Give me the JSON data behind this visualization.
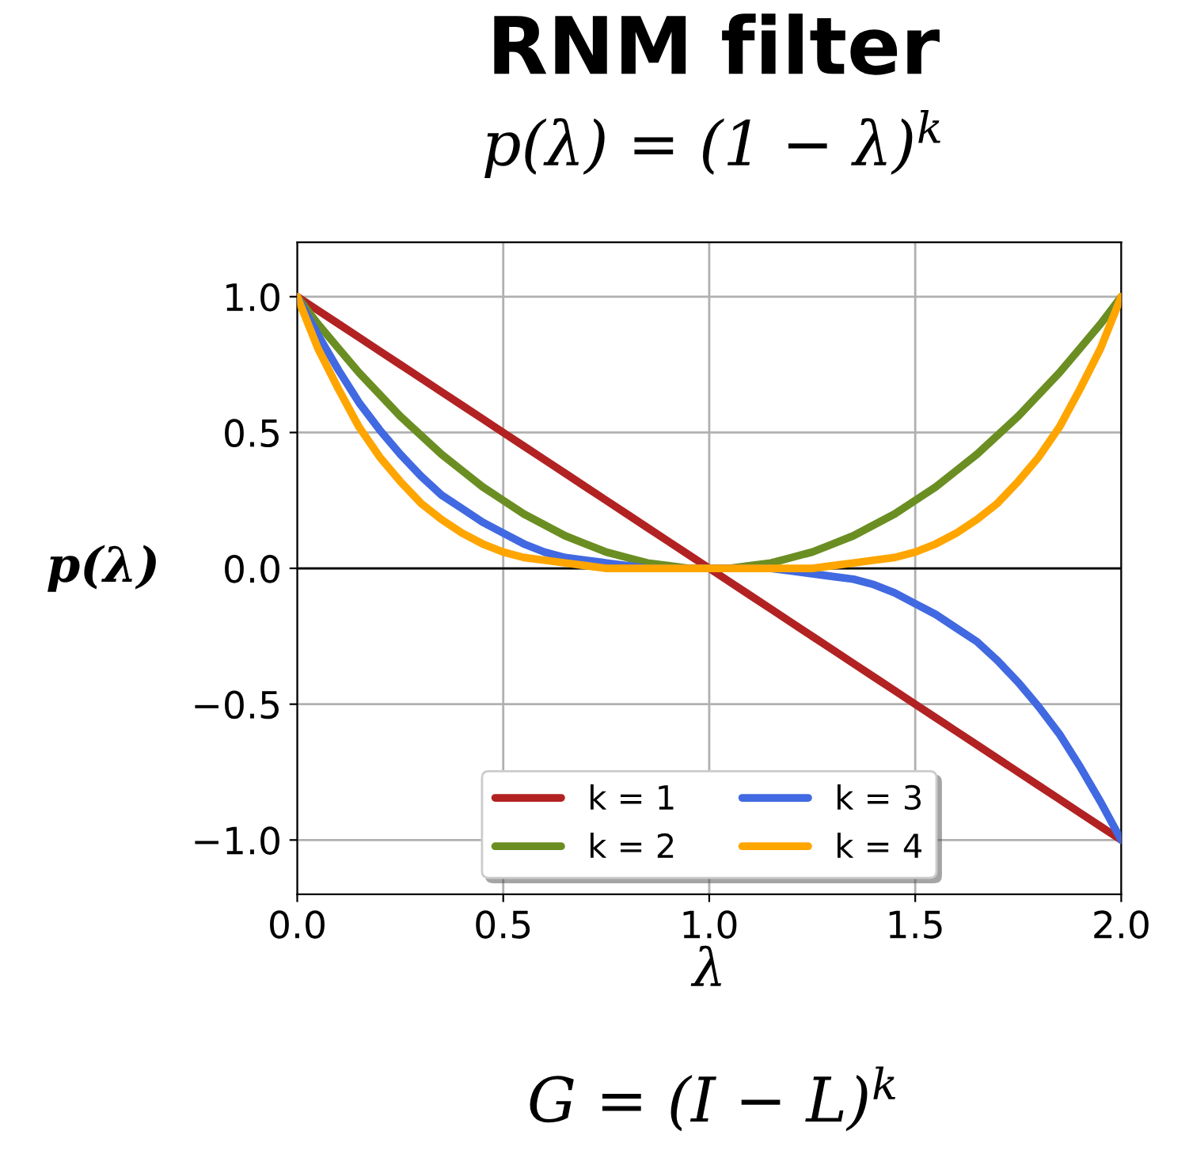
{
  "chart_data": {
    "type": "line",
    "title": "RNM filter",
    "subtitle": "p(λ) = (1 − λ)$^{k}$",
    "xlabel": "λ",
    "ylabel": "p(λ)",
    "annotations": [
      "G = (I − L)$^{k}$"
    ],
    "x": [
      0,
      0.05,
      0.1,
      0.15,
      0.2,
      0.25,
      0.3,
      0.35,
      0.4,
      0.45,
      0.5,
      0.55,
      0.6,
      0.65,
      0.7,
      0.75,
      0.8,
      0.85,
      0.9,
      0.95,
      1.0,
      1.05,
      1.1,
      1.15,
      1.2,
      1.25,
      1.3,
      1.35,
      1.4,
      1.45,
      1.5,
      1.55,
      1.6,
      1.65,
      1.7,
      1.75,
      1.8,
      1.85,
      1.9,
      1.95,
      2.0
    ],
    "series": [
      {
        "name": "k = 1",
        "color": "#b22222",
        "values": [
          1,
          0.95,
          0.9,
          0.85,
          0.8,
          0.75,
          0.7,
          0.65,
          0.6,
          0.55,
          0.5,
          0.45,
          0.4,
          0.35,
          0.3,
          0.25,
          0.2,
          0.15,
          0.1,
          0.05,
          0,
          -0.05,
          -0.1,
          -0.15,
          -0.2,
          -0.25,
          -0.3,
          -0.35,
          -0.4,
          -0.45,
          -0.5,
          -0.55,
          -0.6,
          -0.65,
          -0.7,
          -0.75,
          -0.8,
          -0.85,
          -0.9,
          -0.95,
          -1
        ]
      },
      {
        "name": "k = 2",
        "color": "#6b8e23",
        "values": [
          1,
          0.9,
          0.81,
          0.72,
          0.64,
          0.56,
          0.49,
          0.42,
          0.36,
          0.3,
          0.25,
          0.2,
          0.16,
          0.12,
          0.09,
          0.06,
          0.04,
          0.02,
          0.01,
          0,
          0,
          0,
          0.01,
          0.02,
          0.04,
          0.06,
          0.09,
          0.12,
          0.16,
          0.2,
          0.25,
          0.3,
          0.36,
          0.42,
          0.49,
          0.56,
          0.64,
          0.72,
          0.81,
          0.9,
          1
        ]
      },
      {
        "name": "k = 3",
        "color": "#4169e1",
        "values": [
          1,
          0.86,
          0.73,
          0.61,
          0.51,
          0.42,
          0.34,
          0.27,
          0.22,
          0.17,
          0.13,
          0.09,
          0.06,
          0.04,
          0.03,
          0.02,
          0.01,
          0,
          0,
          0,
          0,
          0,
          0,
          0,
          -0.01,
          -0.02,
          -0.03,
          -0.04,
          -0.06,
          -0.09,
          -0.13,
          -0.17,
          -0.22,
          -0.27,
          -0.34,
          -0.42,
          -0.51,
          -0.61,
          -0.73,
          -0.86,
          -1
        ]
      },
      {
        "name": "k = 4",
        "color": "#ffa500",
        "values": [
          1,
          0.81,
          0.66,
          0.52,
          0.41,
          0.32,
          0.24,
          0.18,
          0.13,
          0.09,
          0.06,
          0.04,
          0.03,
          0.02,
          0.01,
          0,
          0,
          0,
          0,
          0,
          0,
          0,
          0,
          0,
          0,
          0,
          0.01,
          0.02,
          0.03,
          0.04,
          0.06,
          0.09,
          0.13,
          0.18,
          0.24,
          0.32,
          0.41,
          0.52,
          0.66,
          0.81,
          1
        ]
      }
    ],
    "xlim": [
      0,
      2
    ],
    "xticks": [
      {
        "value": 0,
        "label": "0.0"
      },
      0.5,
      {
        "value": 1,
        "label": "1.0"
      },
      1.5,
      {
        "value": 2,
        "label": "2.0"
      }
    ],
    "ylim": [
      -1.2,
      1.2
    ],
    "yticks": [
      {
        "value": -1,
        "label": "−1.0"
      },
      {
        "value": -0.5,
        "label": "−0.5"
      },
      {
        "value": 0,
        "label": "0.0"
      },
      0.5,
      {
        "value": 1,
        "label": "1.0"
      }
    ],
    "ref_lines": [
      {
        "axis": "y",
        "value": 0,
        "color": "#000000"
      }
    ],
    "grid": true,
    "legend": "bottom",
    "marker": "none",
    "line_style": "solid"
  }
}
